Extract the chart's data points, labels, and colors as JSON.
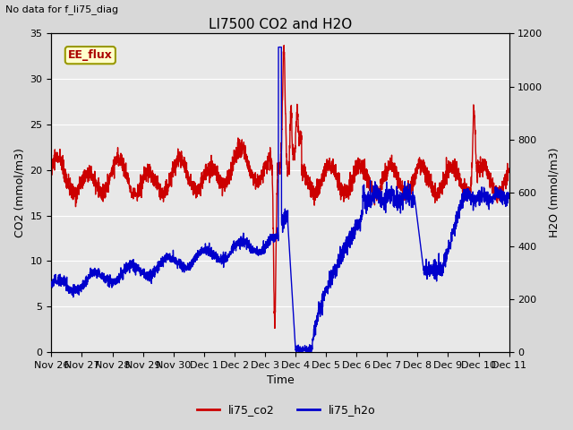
{
  "title": "LI7500 CO2 and H2O",
  "top_left_text": "No data for f_li75_diag",
  "xlabel": "Time",
  "ylabel_left": "CO2 (mmol/m3)",
  "ylabel_right": "H2O (mmol/m3)",
  "ylim_left": [
    0,
    35
  ],
  "ylim_right": [
    0,
    1200
  ],
  "yticks_left": [
    0,
    5,
    10,
    15,
    20,
    25,
    30,
    35
  ],
  "yticks_right": [
    0,
    200,
    400,
    600,
    800,
    1000,
    1200
  ],
  "bg_color": "#d8d8d8",
  "plot_bg_color": "#e8e8e8",
  "co2_color": "#cc0000",
  "h2o_color": "#0000cc",
  "legend_labels": [
    "li75_co2",
    "li75_h2o"
  ],
  "ee_flux_label": "EE_flux",
  "ee_flux_bg": "#ffffcc",
  "ee_flux_border": "#999900",
  "title_fontsize": 11,
  "label_fontsize": 9,
  "tick_fontsize": 8,
  "line_width": 1.0,
  "x_tick_labels": [
    "Nov 26",
    "Nov 27",
    "Nov 28",
    "Nov 29",
    "Nov 30",
    "Dec 1",
    "Dec 2",
    "Dec 3",
    "Dec 4",
    "Dec 5",
    "Dec 6",
    "Dec 7",
    "Dec 8",
    "Dec 9",
    "Dec 10",
    "Dec 11"
  ],
  "x_tick_positions": [
    0,
    1,
    2,
    3,
    4,
    5,
    6,
    7,
    8,
    9,
    10,
    11,
    12,
    13,
    14,
    15
  ]
}
